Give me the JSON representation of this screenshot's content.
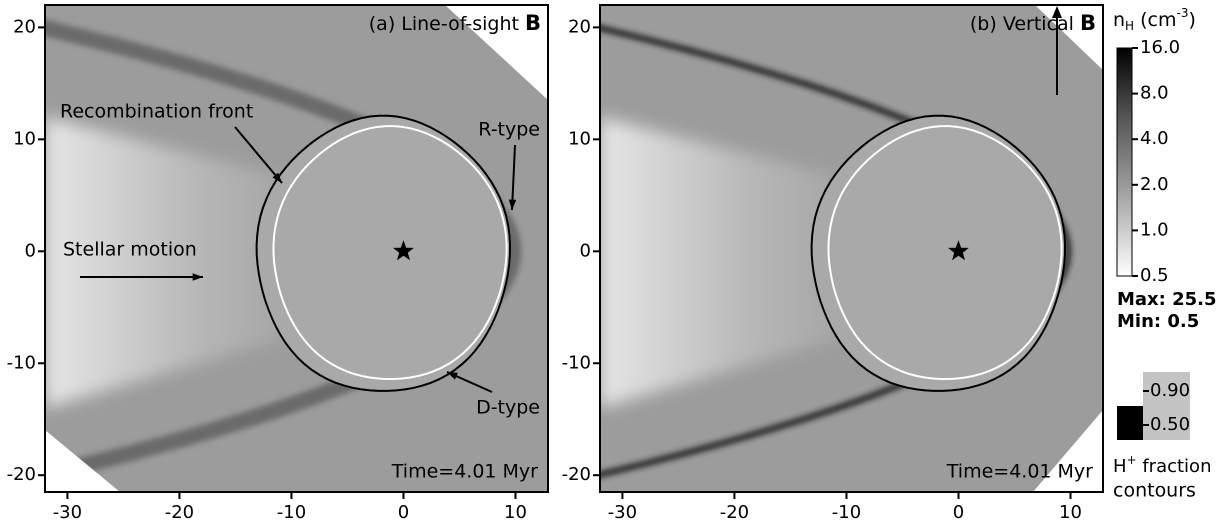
{
  "chart_data": [
    {
      "type": "image",
      "title_parts": [
        "(a) Line-of-sight ",
        "B"
      ],
      "annotations": [
        "Recombination front",
        "R-type",
        "Stellar motion",
        "D-type"
      ],
      "time_label": "Time=4.01 Myr",
      "xlim": [
        -32,
        12.9
      ],
      "ylim": [
        -21.5,
        22
      ],
      "xticks": [
        -30,
        -20,
        -10,
        0,
        10
      ],
      "yticks": [
        20,
        10,
        0,
        -10,
        -20
      ],
      "star": {
        "x": 0,
        "y": 0
      }
    },
    {
      "type": "image",
      "title_parts": [
        "(b) Vertical ",
        "B"
      ],
      "annotations": [],
      "time_label": "Time=4.01 Myr",
      "xlim": [
        -32,
        12.9
      ],
      "ylim": [
        -21.5,
        22
      ],
      "xticks": [
        -30,
        -20,
        -10,
        0,
        10
      ],
      "yticks": [
        20,
        10,
        0,
        -10,
        -20
      ],
      "star": {
        "x": 0,
        "y": 0
      }
    }
  ],
  "colorbar": {
    "title_parts": [
      "n",
      "H",
      " (cm",
      "-3",
      ")"
    ],
    "lim": [
      0.5,
      16
    ],
    "log": true,
    "ticks": [
      {
        "value": 16,
        "label": "16.0"
      },
      {
        "value": 8,
        "label": "8.0"
      },
      {
        "value": 4,
        "label": "4.0"
      },
      {
        "value": 2,
        "label": "2.0"
      },
      {
        "value": 1,
        "label": "1.0"
      },
      0.5
    ],
    "max_label": "Max: 25.5",
    "min_label": "Min: 0.5"
  },
  "contour_legend": {
    "ticks": [
      {
        "value": 0.9,
        "label": "0.90"
      },
      {
        "value": 0.5,
        "label": "0.50"
      }
    ],
    "colors": [
      "#ffffff",
      "#000000"
    ],
    "caption_parts": [
      "H",
      "+",
      " fraction"
    ],
    "caption_line2": "contours"
  }
}
